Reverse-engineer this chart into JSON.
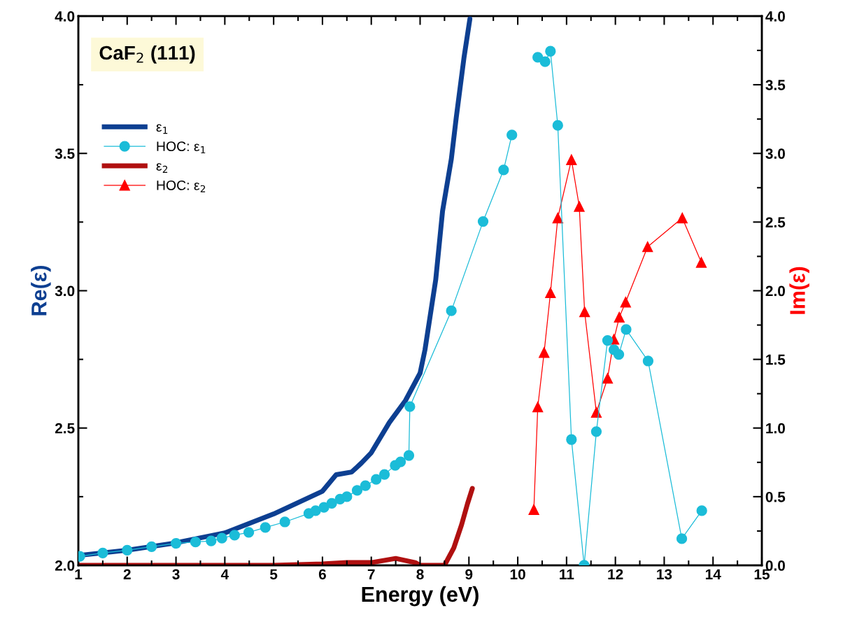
{
  "chart_data": {
    "type": "line",
    "xlabel": "Energy (eV)",
    "ylabel": "Re(ε)",
    "y2label": "Im(ε)",
    "annotations": [
      "CaF$_{2}$ (111)"
    ],
    "xlim": [
      1,
      15
    ],
    "xticks": [
      1,
      2,
      3,
      4,
      5,
      6,
      7,
      8,
      9,
      10,
      11,
      12,
      13,
      14,
      15
    ],
    "ylim": [
      2,
      4
    ],
    "yticks": [
      {
        "value": 2,
        "label": "2.0"
      },
      {
        "value": 2.5,
        "label": "2.5"
      },
      {
        "value": 3,
        "label": "3.0"
      },
      {
        "value": 3.5,
        "label": "3.5"
      },
      {
        "value": 4,
        "label": "4.0"
      }
    ],
    "y2lim": [
      0,
      4
    ],
    "y2ticks": [
      {
        "value": 0,
        "label": "0.0"
      },
      {
        "value": 0.5,
        "label": "0.5"
      },
      {
        "value": 1,
        "label": "1.0"
      },
      {
        "value": 1.5,
        "label": "1.5"
      },
      {
        "value": 2,
        "label": "2.0"
      },
      {
        "value": 2.5,
        "label": "2.5"
      },
      {
        "value": 3,
        "label": "3.0"
      },
      {
        "value": 3.5,
        "label": "3.5"
      },
      {
        "value": 4,
        "label": "4.0"
      }
    ],
    "grid": false,
    "legend": "top left",
    "series": [
      {
        "name": "ε$_{1}$",
        "color": "#0d3f91",
        "marker": "none",
        "x": [
          1.0,
          2.0,
          3.0,
          4.0,
          5.0,
          6.0,
          6.28,
          6.6,
          6.8,
          7.0,
          7.37,
          7.7,
          8.0,
          8.1,
          8.32,
          8.46,
          8.64,
          8.74,
          8.9,
          9.02
        ],
        "values": [
          2.036,
          2.055,
          2.082,
          2.118,
          2.187,
          2.27,
          2.33,
          2.34,
          2.373,
          2.41,
          2.52,
          2.6,
          2.7,
          2.785,
          3.04,
          3.29,
          3.48,
          3.63,
          3.85,
          3.99
        ]
      },
      {
        "name": "HOC: ε$_{1}$",
        "color": "#1bbcd8",
        "marker": "circle",
        "x": [
          1.03,
          1.5,
          2.0,
          2.5,
          3.0,
          3.4,
          3.72,
          3.94,
          4.2,
          4.49,
          4.83,
          5.23,
          5.72,
          5.86,
          6.03,
          6.19,
          6.36,
          6.5,
          6.71,
          6.88,
          7.1,
          7.27,
          7.49,
          7.6,
          7.77,
          7.79,
          8.64,
          9.29,
          9.71,
          9.88,
          10.27,
          10.41,
          10.56,
          10.67,
          10.82,
          11.1,
          11.36,
          11.61,
          11.84,
          11.97,
          12.07,
          12.22,
          12.67,
          13.36,
          13.77
        ],
        "values": [
          2.033,
          2.045,
          2.055,
          2.068,
          2.08,
          2.085,
          2.089,
          2.099,
          2.11,
          2.12,
          2.138,
          2.158,
          2.189,
          2.199,
          2.211,
          2.226,
          2.241,
          2.25,
          2.273,
          2.29,
          2.313,
          2.331,
          2.364,
          2.377,
          2.4,
          2.578,
          2.927,
          3.252,
          3.44,
          3.567,
          null,
          3.85,
          3.834,
          3.872,
          3.602,
          2.458,
          2.0,
          2.487,
          2.819,
          2.785,
          2.768,
          2.859,
          2.744,
          2.097,
          2.199
        ]
      },
      {
        "name": "ε$_{2}$",
        "color": "#b01010",
        "marker": "none",
        "axis": "y2",
        "x": [
          1.0,
          3.0,
          5.0,
          6.0,
          6.5,
          7.0,
          7.5,
          7.9,
          8.0,
          8.5,
          8.69,
          8.85,
          8.97,
          9.07
        ],
        "values": [
          0.0,
          0.0,
          0.0,
          0.01,
          0.02,
          0.02,
          0.05,
          0.02,
          0.0,
          0.0,
          0.127,
          0.296,
          0.448,
          0.56
        ]
      },
      {
        "name": "HOC: ε$_{2}$",
        "color": "#ff0000",
        "marker": "triangle",
        "axis": "y2",
        "x": [
          10.33,
          10.41,
          10.54,
          10.67,
          10.82,
          11.1,
          11.26,
          11.37,
          11.61,
          11.84,
          11.97,
          12.08,
          12.21,
          12.66,
          13.37,
          13.76
        ],
        "values": [
          0.406,
          1.153,
          1.55,
          1.985,
          2.53,
          2.954,
          2.614,
          1.846,
          1.114,
          1.362,
          1.646,
          1.807,
          1.917,
          2.32,
          2.53,
          2.206
        ]
      }
    ]
  }
}
